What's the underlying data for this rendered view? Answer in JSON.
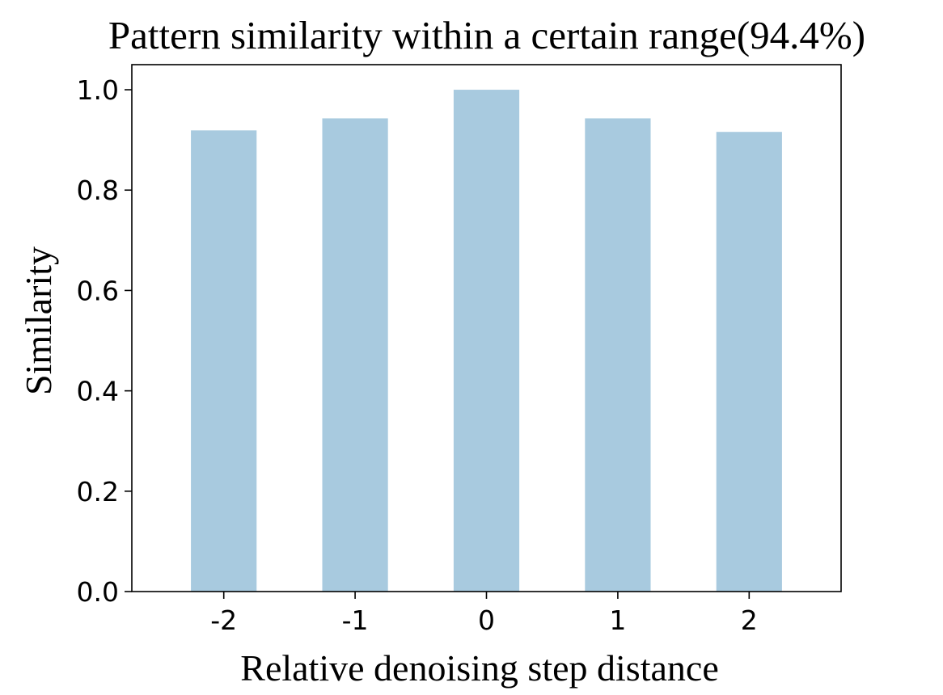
{
  "chart_data": {
    "type": "bar",
    "title": "Pattern similarity within a certain range(94.4%)",
    "xlabel": "Relative denoising step distance",
    "ylabel": "Similarity",
    "categories": [
      "-2",
      "-1",
      "0",
      "1",
      "2"
    ],
    "values": [
      0.919,
      0.943,
      1.0,
      0.943,
      0.916
    ],
    "ylim": [
      0,
      1.05
    ],
    "yticks": [
      0.0,
      0.2,
      0.4,
      0.6,
      0.8,
      1.0
    ],
    "ytick_labels": [
      "0.0",
      "0.2",
      "0.4",
      "0.6",
      "0.8",
      "1.0"
    ],
    "bar_color": "#a8cadf",
    "grid": false,
    "legend": "none"
  }
}
